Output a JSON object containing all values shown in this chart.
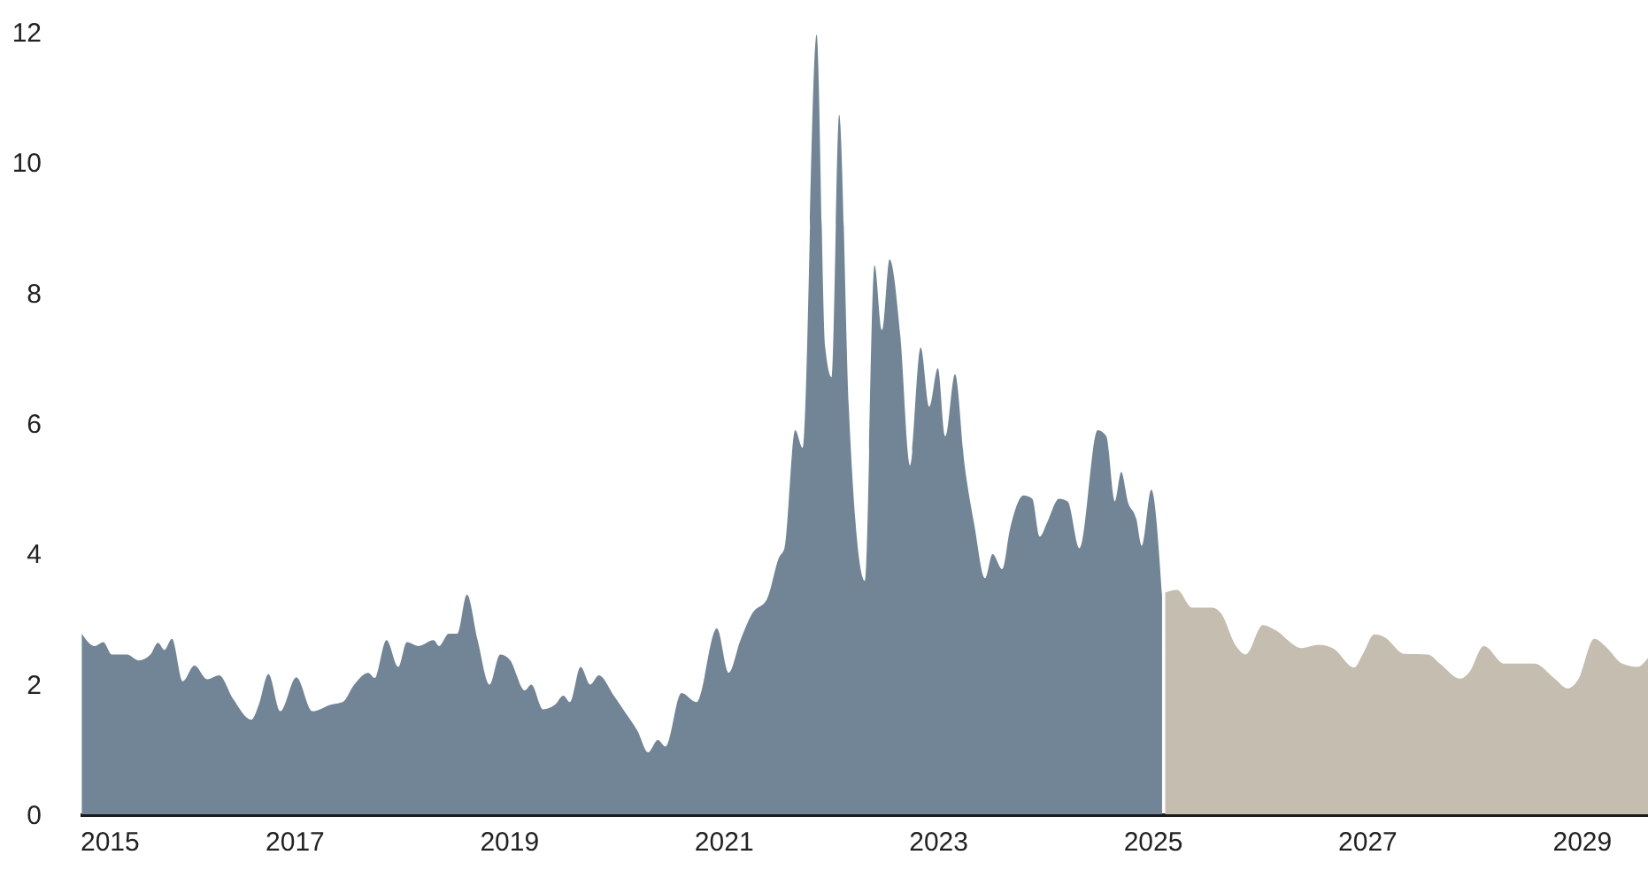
{
  "chart_data": {
    "type": "area",
    "xlim": [
      2015,
      2029.62
    ],
    "xticks": [
      2015,
      2017,
      2019,
      2021,
      2023,
      2025,
      2027,
      2029
    ],
    "ylim": [
      0,
      12
    ],
    "yticks": [
      0,
      2,
      4,
      6,
      8,
      10,
      12
    ],
    "grid": false,
    "series": [
      {
        "color": "#718597",
        "x": [
          2015.02,
          2015.14,
          2015.22,
          2015.3,
          2015.44,
          2015.55,
          2015.66,
          2015.73,
          2015.79,
          2015.86,
          2015.96,
          2016.07,
          2016.19,
          2016.3,
          2016.43,
          2016.6,
          2016.67,
          2016.76,
          2016.87,
          2017.02,
          2017.17,
          2017.34,
          2017.45,
          2017.56,
          2017.69,
          2017.75,
          2017.86,
          2017.97,
          2018.05,
          2018.16,
          2018.3,
          2018.35,
          2018.44,
          2018.52,
          2018.61,
          2018.71,
          2018.82,
          2018.92,
          2019.01,
          2019.15,
          2019.21,
          2019.32,
          2019.43,
          2019.51,
          2019.57,
          2019.67,
          2019.76,
          2019.84,
          2019.98,
          2020.09,
          2020.2,
          2020.3,
          2020.39,
          2020.46,
          2020.61,
          2020.75,
          2020.94,
          2021.05,
          2021.16,
          2021.27,
          2021.41,
          2021.52,
          2021.57,
          2021.67,
          2021.74,
          2021.87,
          2021.95,
          2022.01,
          2022.08,
          2022.17,
          2022.23,
          2022.32,
          2022.41,
          2022.48,
          2022.55,
          2022.65,
          2022.74,
          2022.84,
          2022.92,
          2023.0,
          2023.07,
          2023.16,
          2023.25,
          2023.34,
          2023.44,
          2023.51,
          2023.6,
          2023.67,
          2023.8,
          2023.88,
          2023.95,
          2024.02,
          2024.13,
          2024.21,
          2024.32,
          2024.49,
          2024.57,
          2024.65,
          2024.71,
          2024.77,
          2024.85,
          2024.9,
          2024.99,
          2025.09
        ],
        "values": [
          2.77,
          2.58,
          2.64,
          2.45,
          2.45,
          2.36,
          2.45,
          2.63,
          2.52,
          2.69,
          2.04,
          2.28,
          2.07,
          2.13,
          1.77,
          1.45,
          1.68,
          2.15,
          1.58,
          2.1,
          1.58,
          1.68,
          1.72,
          1.99,
          2.17,
          2.09,
          2.67,
          2.26,
          2.64,
          2.58,
          2.67,
          2.58,
          2.77,
          2.77,
          3.37,
          2.67,
          1.99,
          2.45,
          2.37,
          1.9,
          1.99,
          1.61,
          1.68,
          1.82,
          1.72,
          2.26,
          1.99,
          2.13,
          1.82,
          1.55,
          1.28,
          0.95,
          1.14,
          1.04,
          1.86,
          1.72,
          2.85,
          2.17,
          2.67,
          3.08,
          3.31,
          3.94,
          4.08,
          5.89,
          5.62,
          11.96,
          7.16,
          6.7,
          10.73,
          6.25,
          4.53,
          3.58,
          8.42,
          7.43,
          8.51,
          7.34,
          5.35,
          7.16,
          6.25,
          6.84,
          5.8,
          6.75,
          5.35,
          4.44,
          3.62,
          3.99,
          3.76,
          4.35,
          4.89,
          4.84,
          4.26,
          4.48,
          4.84,
          4.8,
          4.08,
          5.89,
          5.8,
          4.8,
          5.25,
          4.8,
          4.53,
          4.12,
          4.98,
          3.35
        ]
      },
      {
        "color": "#c4bdb0",
        "x": [
          2025.12,
          2025.23,
          2025.37,
          2025.56,
          2025.64,
          2025.78,
          2025.87,
          2026.03,
          2026.14,
          2026.39,
          2026.55,
          2026.69,
          2026.88,
          2026.96,
          2027.07,
          2027.16,
          2027.35,
          2027.57,
          2027.68,
          2027.87,
          2027.95,
          2028.09,
          2028.28,
          2028.56,
          2028.75,
          2028.87,
          2028.97,
          2029.12,
          2029.22,
          2029.38,
          2029.52,
          2029.62
        ],
        "values": [
          3.4,
          3.44,
          3.17,
          3.17,
          3.08,
          2.58,
          2.45,
          2.9,
          2.83,
          2.55,
          2.6,
          2.54,
          2.25,
          2.45,
          2.76,
          2.72,
          2.46,
          2.45,
          2.31,
          2.08,
          2.17,
          2.58,
          2.31,
          2.31,
          2.08,
          1.93,
          2.07,
          2.69,
          2.58,
          2.31,
          2.26,
          2.4
        ]
      }
    ]
  }
}
